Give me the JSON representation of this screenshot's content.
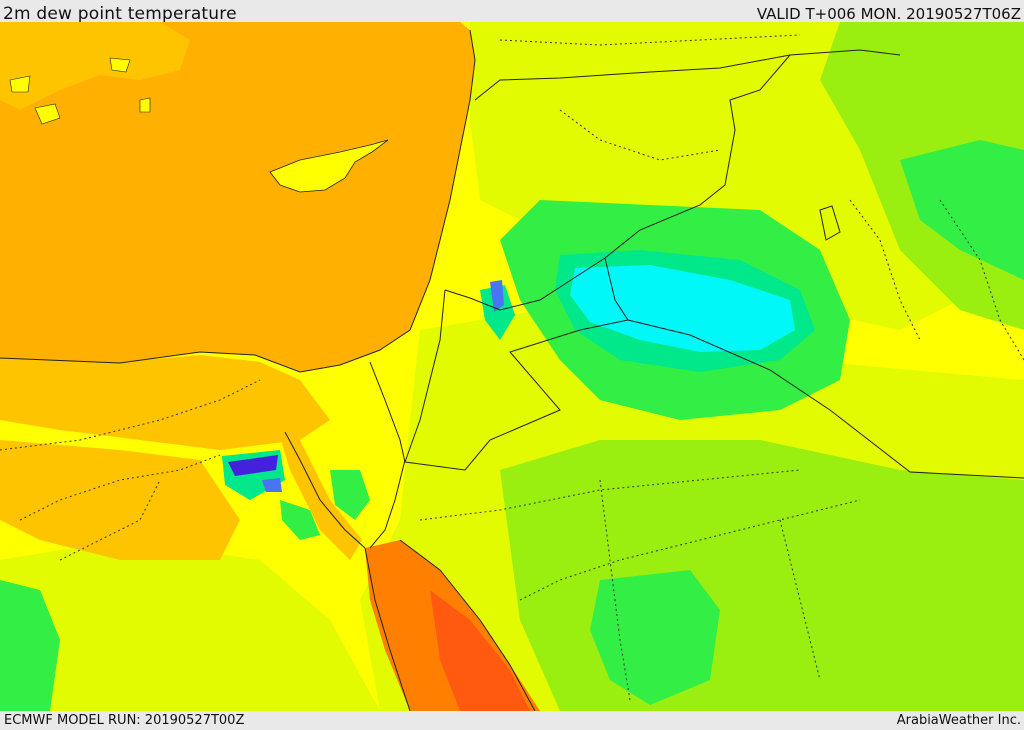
{
  "header": {
    "title": "2m dew point temperature",
    "valid": "VALID T+006 MON. 20190527T06Z"
  },
  "footer": {
    "model_run": "ECMWF MODEL RUN: 20190527T00Z",
    "brand": "ArabiaWeather Inc."
  },
  "colors": {
    "background": "#e9e9e9",
    "yellow": "#ffff00",
    "yellow_green": "#e2fb00",
    "light_green": "#9aee10",
    "green": "#33ee44",
    "teal": "#00e88a",
    "cyan": "#00f8f8",
    "blue": "#4a74f5",
    "purple": "#4422dd",
    "sea_orange": "#ffb000",
    "orange": "#ffc400",
    "dark_orange": "#ff8000",
    "red_orange": "#ff5a10"
  }
}
